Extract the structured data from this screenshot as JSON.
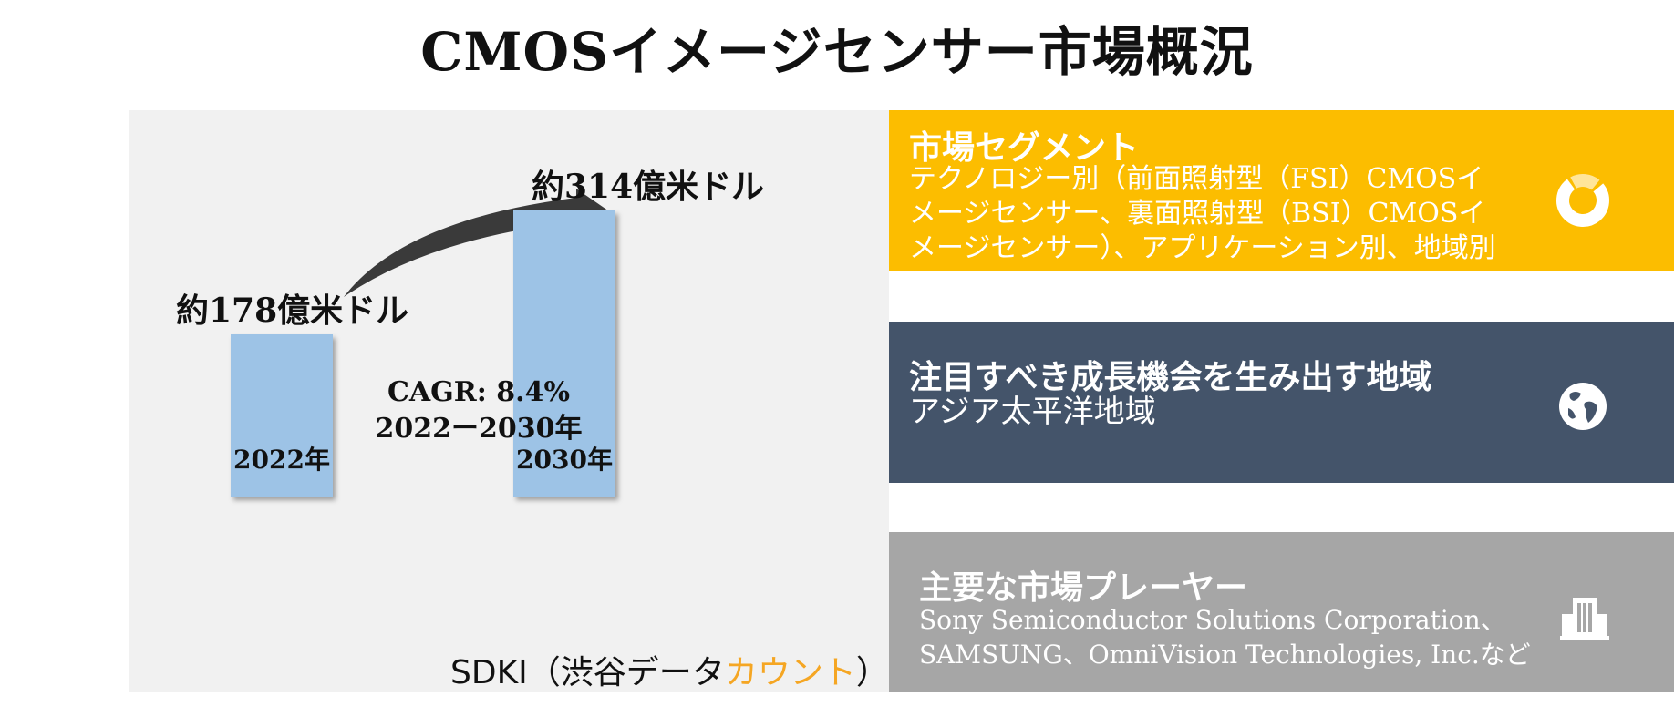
{
  "title": "CMOSイメージセンサー市場概況",
  "chart_data": {
    "type": "bar",
    "categories": [
      "2022年",
      "2030年"
    ],
    "values": [
      178,
      314
    ],
    "value_labels": [
      "約178億米ドル",
      "約314億米ドル"
    ],
    "annotation": [
      "CAGR: 8.4%",
      "2022ー2030年"
    ],
    "title": "",
    "xlabel": "",
    "ylabel": "",
    "ylim": [
      0,
      314
    ],
    "grid": false,
    "legend": "none"
  },
  "source": {
    "prefix": "SDKI（渋谷データ",
    "accent": "カウント",
    "suffix": "）"
  },
  "segment": {
    "heading": "市場セグメント",
    "lines": [
      "テクノロジー別（前面照射型（FSI）CMOSイ",
      "メージセンサー、裏面照射型（BSI）CMOSイ",
      "メージセンサー）、アプリケーション別、地域別"
    ],
    "icon": "donut-chart-icon",
    "color": "#fcbd00"
  },
  "region": {
    "heading": "注目すべき成長機会を生み出す地域",
    "body": "アジア太平洋地域",
    "icon": "globe-icon",
    "color": "#44546a"
  },
  "players": {
    "heading": "主要な市場プレーヤー",
    "lines": [
      "Sony Semiconductor Solutions Corporation、",
      "SAMSUNG、OmniVision Technologies, Inc.など"
    ],
    "icon": "building-icon",
    "color": "#a6a6a6"
  },
  "colors": {
    "bar": "#9dc3e6",
    "panel": "#f1f1f1",
    "arrow": "#3a3a3a",
    "accent": "#f5a623"
  }
}
